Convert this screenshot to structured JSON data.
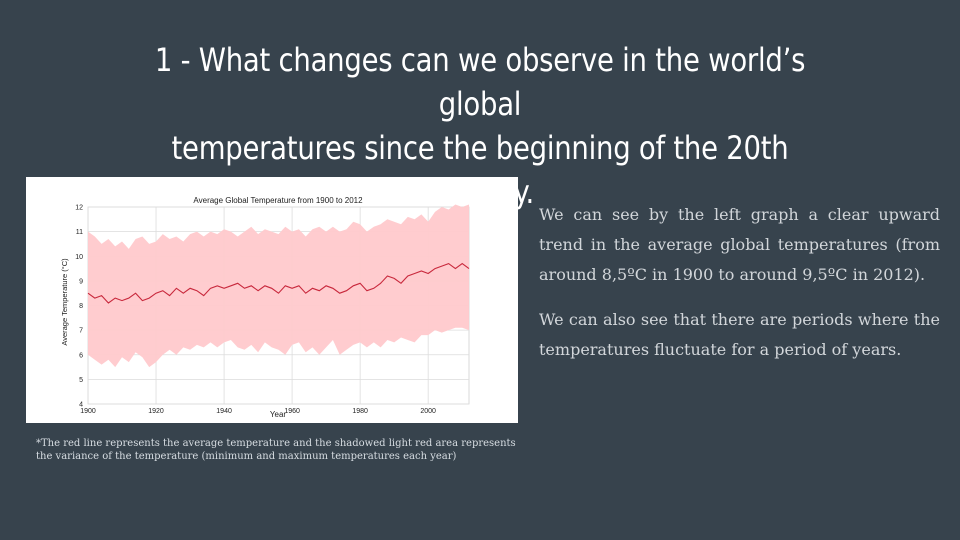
{
  "slide": {
    "title_line1": "1 - What changes can we observe in the world’s global",
    "title_line2": "temperatures since the beginning of the 20th century.",
    "paragraph1": "We can see by the left graph a clear upward trend in the average global temperatures (from around 8,5ºC in 1900 to around 9,5ºC in 2012).",
    "paragraph2": "We can also see that there are periods where the temperatures fluctuate for a period of years.",
    "footnote": "*The red line represents the average temperature and the shadowed light red area represents the variance of the temperature (minimum and maximum temperatures each year)"
  },
  "chart_data": {
    "type": "line",
    "title": "Average Global Temperature from 1900 to 2012",
    "xlabel": "Year",
    "ylabel": "Average Temperature (°C)",
    "xlim": [
      1900,
      2012
    ],
    "ylim": [
      4,
      12
    ],
    "xticks": [
      1900,
      1920,
      1940,
      1960,
      1980,
      2000
    ],
    "yticks": [
      4,
      5,
      6,
      7,
      8,
      9,
      10,
      11,
      12
    ],
    "grid": true,
    "colors": {
      "line": "#c8283c",
      "band": "#ffc9cc"
    },
    "series": [
      {
        "x": [
          1900,
          1902,
          1904,
          1906,
          1908,
          1910,
          1912,
          1914,
          1916,
          1918,
          1920,
          1922,
          1924,
          1926,
          1928,
          1930,
          1932,
          1934,
          1936,
          1938,
          1940,
          1942,
          1944,
          1946,
          1948,
          1950,
          1952,
          1954,
          1956,
          1958,
          1960,
          1962,
          1964,
          1966,
          1968,
          1970,
          1972,
          1974,
          1976,
          1978,
          1980,
          1982,
          1984,
          1986,
          1988,
          1990,
          1992,
          1994,
          1996,
          1998,
          2000,
          2002,
          2004,
          2006,
          2008,
          2010,
          2012
        ],
        "avg": [
          8.5,
          8.3,
          8.4,
          8.1,
          8.3,
          8.2,
          8.3,
          8.5,
          8.2,
          8.3,
          8.5,
          8.6,
          8.4,
          8.7,
          8.5,
          8.7,
          8.6,
          8.4,
          8.7,
          8.8,
          8.7,
          8.8,
          8.9,
          8.7,
          8.8,
          8.6,
          8.8,
          8.7,
          8.5,
          8.8,
          8.7,
          8.8,
          8.5,
          8.7,
          8.6,
          8.8,
          8.7,
          8.5,
          8.6,
          8.8,
          8.9,
          8.6,
          8.7,
          8.9,
          9.2,
          9.1,
          8.9,
          9.2,
          9.3,
          9.4,
          9.3,
          9.5,
          9.6,
          9.7,
          9.5,
          9.7,
          9.5
        ],
        "low": [
          6.0,
          5.8,
          5.6,
          5.8,
          5.5,
          5.9,
          5.7,
          6.1,
          5.9,
          5.5,
          5.7,
          6.0,
          6.2,
          6.0,
          6.3,
          6.2,
          6.4,
          6.3,
          6.5,
          6.3,
          6.5,
          6.6,
          6.3,
          6.2,
          6.4,
          6.1,
          6.5,
          6.3,
          6.2,
          6.0,
          6.4,
          6.5,
          6.1,
          6.3,
          6.0,
          6.3,
          6.6,
          6.0,
          6.2,
          6.4,
          6.5,
          6.3,
          6.5,
          6.3,
          6.6,
          6.5,
          6.7,
          6.6,
          6.5,
          6.8,
          6.8,
          7.0,
          6.9,
          7.0,
          7.1,
          7.1,
          7.0
        ],
        "high": [
          11.0,
          10.8,
          10.5,
          10.7,
          10.4,
          10.6,
          10.3,
          10.7,
          10.8,
          10.5,
          10.6,
          10.9,
          10.7,
          10.8,
          10.6,
          10.9,
          11.0,
          10.8,
          11.0,
          10.9,
          11.1,
          11.0,
          10.8,
          11.0,
          11.2,
          10.9,
          11.1,
          11.0,
          10.9,
          11.2,
          11.0,
          11.1,
          10.8,
          11.1,
          11.2,
          11.0,
          11.2,
          11.0,
          11.1,
          11.4,
          11.3,
          11.0,
          11.2,
          11.3,
          11.5,
          11.4,
          11.3,
          11.6,
          11.5,
          11.7,
          11.4,
          11.8,
          12.0,
          11.9,
          12.1,
          12.0,
          12.1
        ]
      }
    ]
  }
}
